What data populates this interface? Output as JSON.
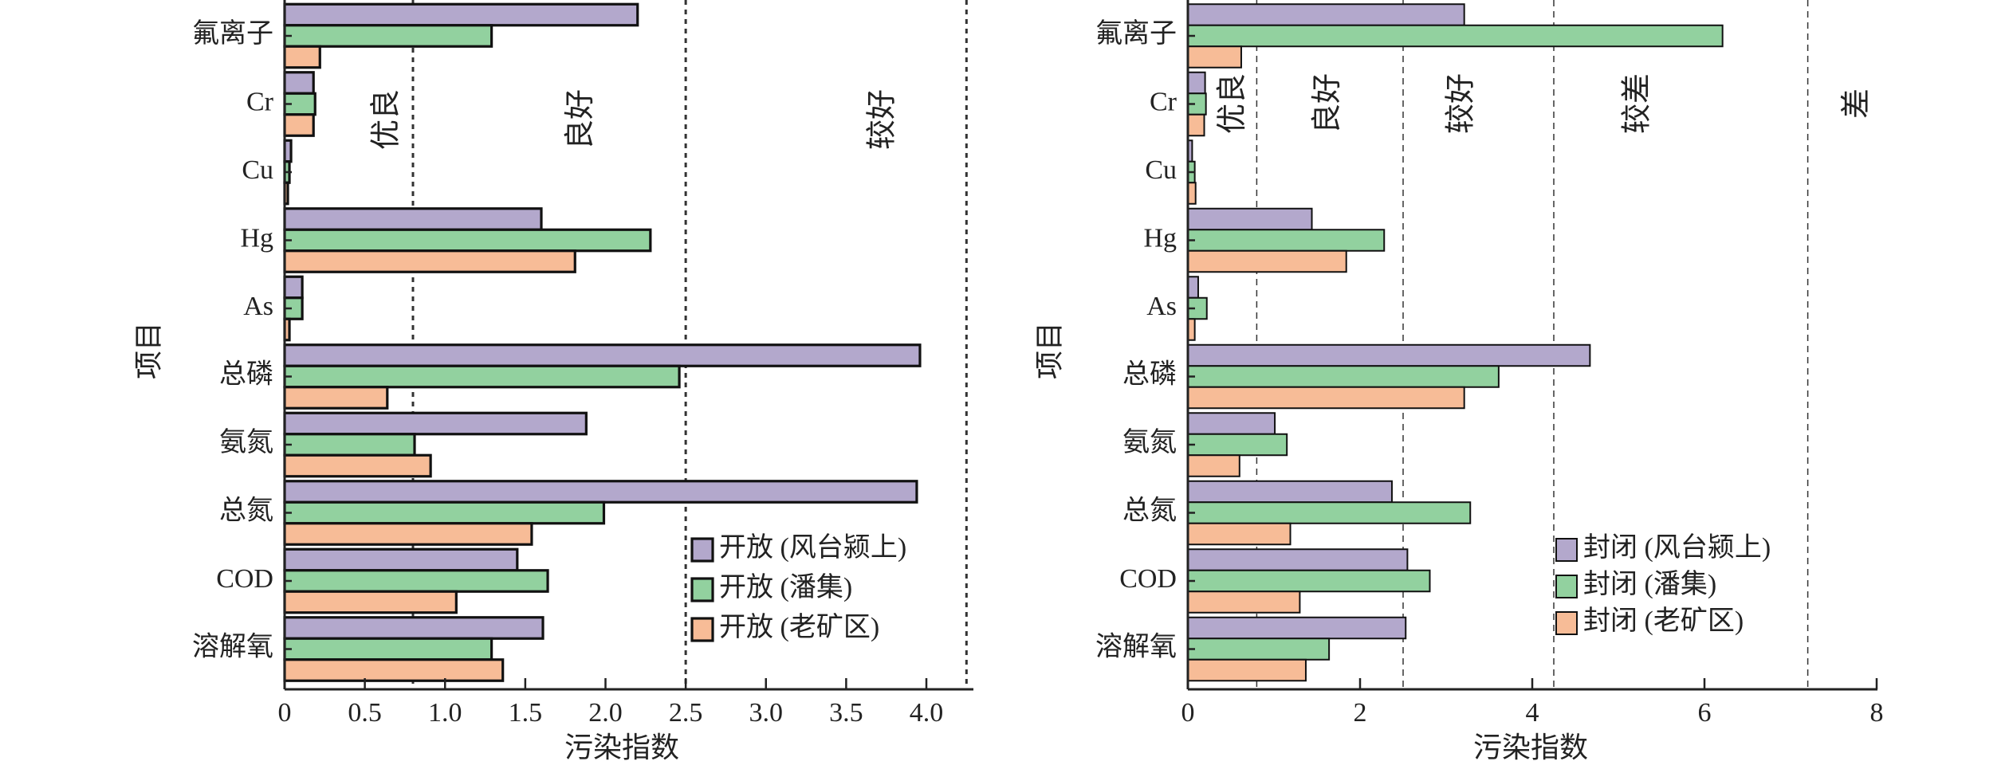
{
  "chart_data": [
    {
      "type": "bar",
      "orientation": "horizontal",
      "xlabel": "污染指数",
      "ylabel": "项目",
      "xlim": [
        0,
        4.3
      ],
      "xticks": [
        "0",
        "0.5",
        "1.0",
        "1.5",
        "2.0",
        "2.5",
        "3.0",
        "3.5",
        "4.0"
      ],
      "xtick_values": [
        0,
        0.5,
        1.0,
        1.5,
        2.0,
        2.5,
        3.0,
        3.5,
        4.0
      ],
      "categories": [
        "氟离子",
        "Cr",
        "Cu",
        "Hg",
        "As",
        "总磷",
        "氨氮",
        "总氮",
        "COD",
        "溶解氧"
      ],
      "series": [
        {
          "name": "开放 (风台颍上)",
          "color": "#b3a8cc",
          "values": [
            2.2,
            0.18,
            0.04,
            1.6,
            0.11,
            3.96,
            1.88,
            3.94,
            1.45,
            1.61
          ]
        },
        {
          "name": "开放 (潘集)",
          "color": "#92d19f",
          "values": [
            1.29,
            0.19,
            0.03,
            2.28,
            0.11,
            2.46,
            0.81,
            1.99,
            1.64,
            1.29
          ]
        },
        {
          "name": "开放 (老矿区)",
          "color": "#f7bc97",
          "values": [
            0.22,
            0.18,
            0.02,
            1.81,
            0.03,
            0.64,
            0.91,
            1.54,
            1.07,
            1.36
          ]
        }
      ],
      "thresholds": [
        0.8,
        2.5,
        4.25
      ],
      "bands": [
        {
          "label": "优良",
          "at": 0.65
        },
        {
          "label": "良好",
          "at": 1.86
        },
        {
          "label": "较好",
          "at": 3.74
        }
      ],
      "legend_position": "bottom-right"
    },
    {
      "type": "bar",
      "orientation": "horizontal",
      "xlabel": "污染指数",
      "ylabel": "项目",
      "xlim": [
        0,
        8
      ],
      "xticks": [
        "0",
        "2",
        "4",
        "6",
        "8"
      ],
      "xtick_values": [
        0,
        2,
        4,
        6,
        8
      ],
      "categories": [
        "氟离子",
        "Cr",
        "Cu",
        "Hg",
        "As",
        "总磷",
        "氨氮",
        "总氮",
        "COD",
        "溶解氧"
      ],
      "series": [
        {
          "name": "封闭 (风台颍上)",
          "color": "#b3a8cc",
          "values": [
            3.21,
            0.2,
            0.05,
            1.44,
            0.12,
            4.67,
            1.01,
            2.37,
            2.55,
            2.53
          ]
        },
        {
          "name": "封闭 (潘集)",
          "color": "#92d19f",
          "values": [
            6.21,
            0.21,
            0.08,
            2.28,
            0.22,
            3.61,
            1.15,
            3.28,
            2.81,
            1.64
          ]
        },
        {
          "name": "封闭 (老矿区)",
          "color": "#f7bc97",
          "values": [
            0.62,
            0.19,
            0.09,
            1.84,
            0.08,
            3.21,
            0.6,
            1.19,
            1.3,
            1.37
          ]
        }
      ],
      "thresholds": [
        0.8,
        2.5,
        4.25,
        7.2
      ],
      "bands": [
        {
          "label": "优良",
          "at": 0.55
        },
        {
          "label": "良好",
          "at": 1.65
        },
        {
          "label": "较好",
          "at": 3.2
        },
        {
          "label": "较差",
          "at": 5.25
        },
        {
          "label": "差",
          "at": 7.8
        }
      ],
      "legend_position": "bottom-right"
    }
  ]
}
